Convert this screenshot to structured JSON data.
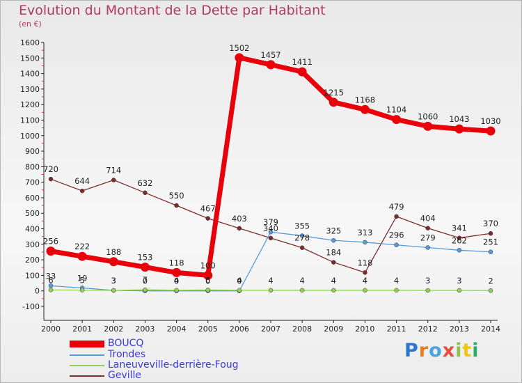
{
  "title": "Evolution du Montant de la Dette par Habitant",
  "subtitle": "(en €)",
  "brand": "Proxiti",
  "chart_data": {
    "type": "line",
    "title": "Evolution du Montant de la Dette par Habitant",
    "ylabel": "(en €)",
    "xlabel": "",
    "ylim": [
      -100,
      1600
    ],
    "yticks": [
      -100,
      0,
      100,
      200,
      300,
      400,
      500,
      600,
      700,
      800,
      900,
      1000,
      1100,
      1200,
      1300,
      1400,
      1500,
      1600
    ],
    "categories": [
      "2000",
      "2001",
      "2002",
      "2003",
      "2004",
      "2005",
      "2006",
      "2007",
      "2008",
      "2009",
      "2010",
      "2011",
      "2012",
      "2013",
      "2014"
    ],
    "grid": false,
    "legend_position": "bottom-left",
    "series": [
      {
        "name": "BOUCQ",
        "color": "#e8000b",
        "values": [
          256,
          222,
          188,
          153,
          118,
          100,
          1502,
          1457,
          1411,
          1215,
          1168,
          1104,
          1060,
          1043,
          1030
        ]
      },
      {
        "name": "Trondes",
        "color": "#5b9bd5",
        "values": [
          33,
          19,
          3,
          0,
          0,
          0,
          0,
          379,
          355,
          325,
          313,
          296,
          279,
          262,
          251
        ]
      },
      {
        "name": "Laneuveville-derrière-Foug",
        "color": "#92d050",
        "values": [
          6,
          5,
          3,
          7,
          4,
          6,
          4,
          4,
          4,
          4,
          4,
          4,
          3,
          3,
          2
        ]
      },
      {
        "name": "Geville",
        "color": "#7b2d2d",
        "values": [
          720,
          644,
          714,
          632,
          550,
          467,
          403,
          340,
          278,
          184,
          118,
          479,
          404,
          341,
          370
        ]
      }
    ]
  }
}
